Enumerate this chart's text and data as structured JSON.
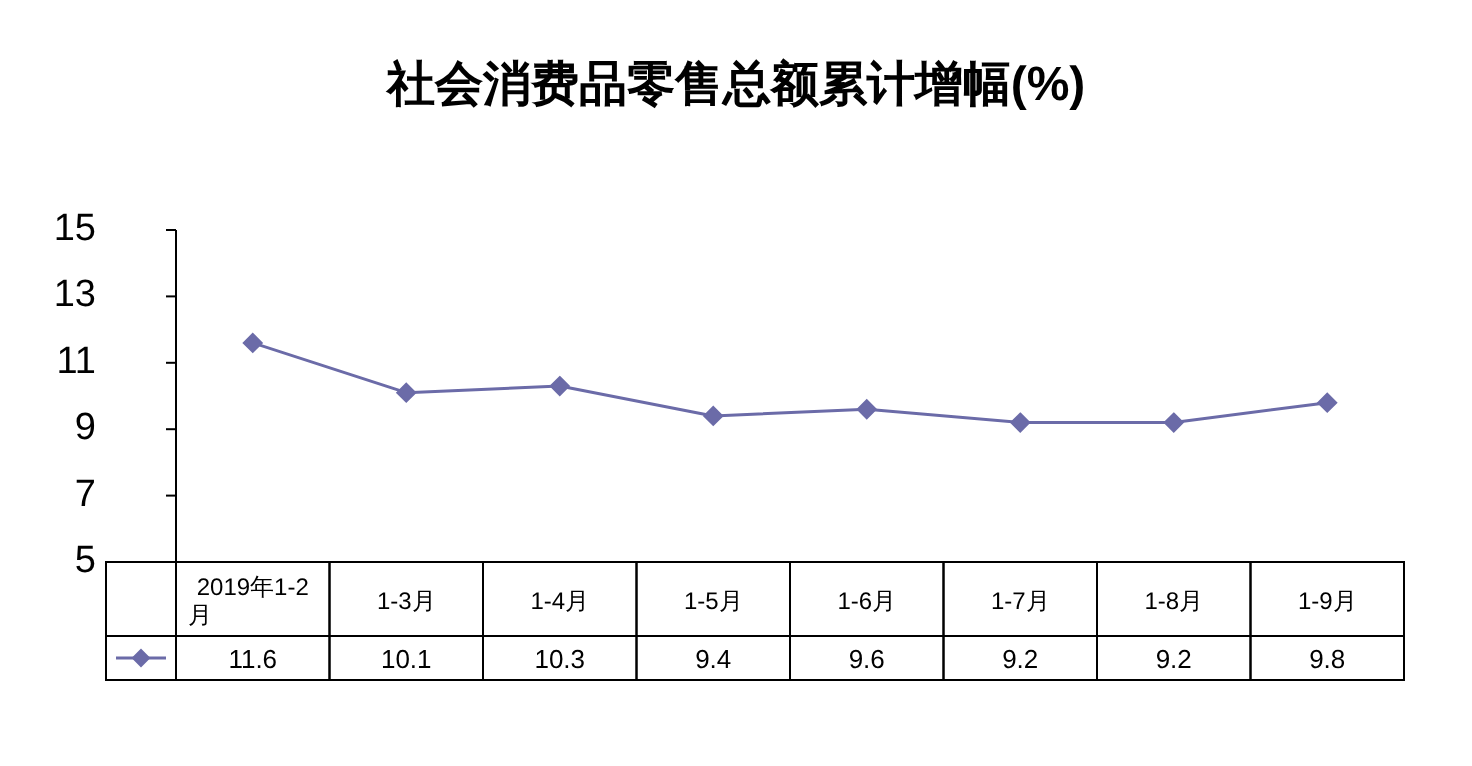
{
  "chart_data": {
    "type": "line",
    "title": "社会消费品零售总额累计增幅(%)",
    "categories": [
      "2019年1-2月",
      "1-3月",
      "1-4月",
      "1-5月",
      "1-6月",
      "1-7月",
      "1-8月",
      "1-9月"
    ],
    "series": [
      {
        "color": "#6b6ba8",
        "values": [
          11.6,
          10.1,
          10.3,
          9.4,
          9.6,
          9.2,
          9.2,
          9.8
        ]
      }
    ],
    "ylim": [
      5,
      15
    ],
    "yticks": [
      5,
      7,
      9,
      11,
      13,
      15
    ],
    "marker": "diamond",
    "line_style": "solid",
    "data_labels": true,
    "grid": false
  }
}
